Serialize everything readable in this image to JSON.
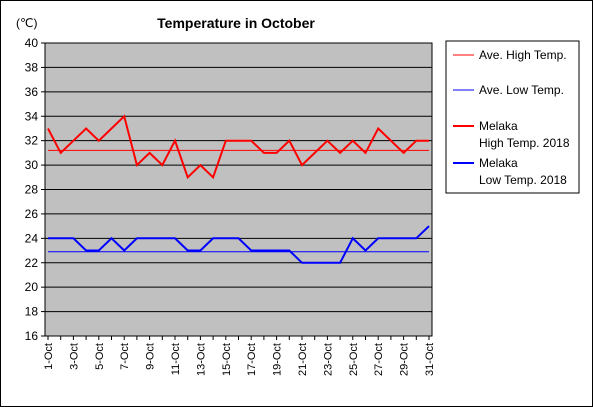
{
  "chart_data": {
    "type": "line",
    "title": "Temperature in October",
    "unit_label": "(℃)",
    "ylim": [
      16,
      40
    ],
    "y_ticks": [
      "40",
      "38",
      "36",
      "34",
      "32",
      "30",
      "28",
      "26",
      "24",
      "22",
      "20",
      "18",
      "16"
    ],
    "x_ticks": [
      "1-Oct",
      "3-Oct",
      "5-Oct",
      "7-Oct",
      "9-Oct",
      "11-Oct",
      "13-Oct",
      "15-Oct",
      "17-Oct",
      "19-Oct",
      "21-Oct",
      "23-Oct",
      "25-Oct",
      "27-Oct",
      "29-Oct",
      "31-Oct"
    ],
    "days": [
      1,
      2,
      3,
      4,
      5,
      6,
      7,
      8,
      9,
      10,
      11,
      12,
      13,
      14,
      15,
      16,
      17,
      18,
      19,
      20,
      21,
      22,
      23,
      24,
      25,
      26,
      27,
      28,
      29,
      30,
      31
    ],
    "grid": true,
    "legend_position": "right",
    "plot_background": "#c0c0c0",
    "series": [
      {
        "name": "Ave. High Temp.",
        "color": "#ff0000",
        "width": "thin",
        "values": [
          31.2,
          31.2,
          31.2,
          31.2,
          31.2,
          31.2,
          31.2,
          31.2,
          31.2,
          31.2,
          31.2,
          31.2,
          31.2,
          31.2,
          31.2,
          31.2,
          31.2,
          31.2,
          31.2,
          31.2,
          31.2,
          31.2,
          31.2,
          31.2,
          31.2,
          31.2,
          31.2,
          31.2,
          31.2,
          31.2,
          31.2
        ]
      },
      {
        "name": "Ave. Low Temp.",
        "color": "#0000ff",
        "width": "thin",
        "values": [
          22.9,
          22.9,
          22.9,
          22.9,
          22.9,
          22.9,
          22.9,
          22.9,
          22.9,
          22.9,
          22.9,
          22.9,
          22.9,
          22.9,
          22.9,
          22.9,
          22.9,
          22.9,
          22.9,
          22.9,
          22.9,
          22.9,
          22.9,
          22.9,
          22.9,
          22.9,
          22.9,
          22.9,
          22.9,
          22.9,
          22.9
        ]
      },
      {
        "name_lines": [
          "Melaka",
          "High Temp. 2018"
        ],
        "color": "#ff0000",
        "width": "thick",
        "values": [
          33,
          31,
          32,
          33,
          32,
          33,
          34,
          30,
          31,
          30,
          32,
          29,
          30,
          29,
          32,
          32,
          32,
          31,
          31,
          32,
          30,
          31,
          32,
          31,
          32,
          31,
          33,
          32,
          31,
          32,
          32
        ]
      },
      {
        "name_lines": [
          "Melaka",
          "Low Temp. 2018"
        ],
        "color": "#0000ff",
        "width": "thick",
        "values": [
          24,
          24,
          24,
          23,
          23,
          24,
          23,
          24,
          24,
          24,
          24,
          23,
          23,
          24,
          24,
          24,
          23,
          23,
          23,
          23,
          22,
          22,
          22,
          22,
          24,
          23,
          24,
          24,
          24,
          24,
          25
        ]
      }
    ]
  }
}
